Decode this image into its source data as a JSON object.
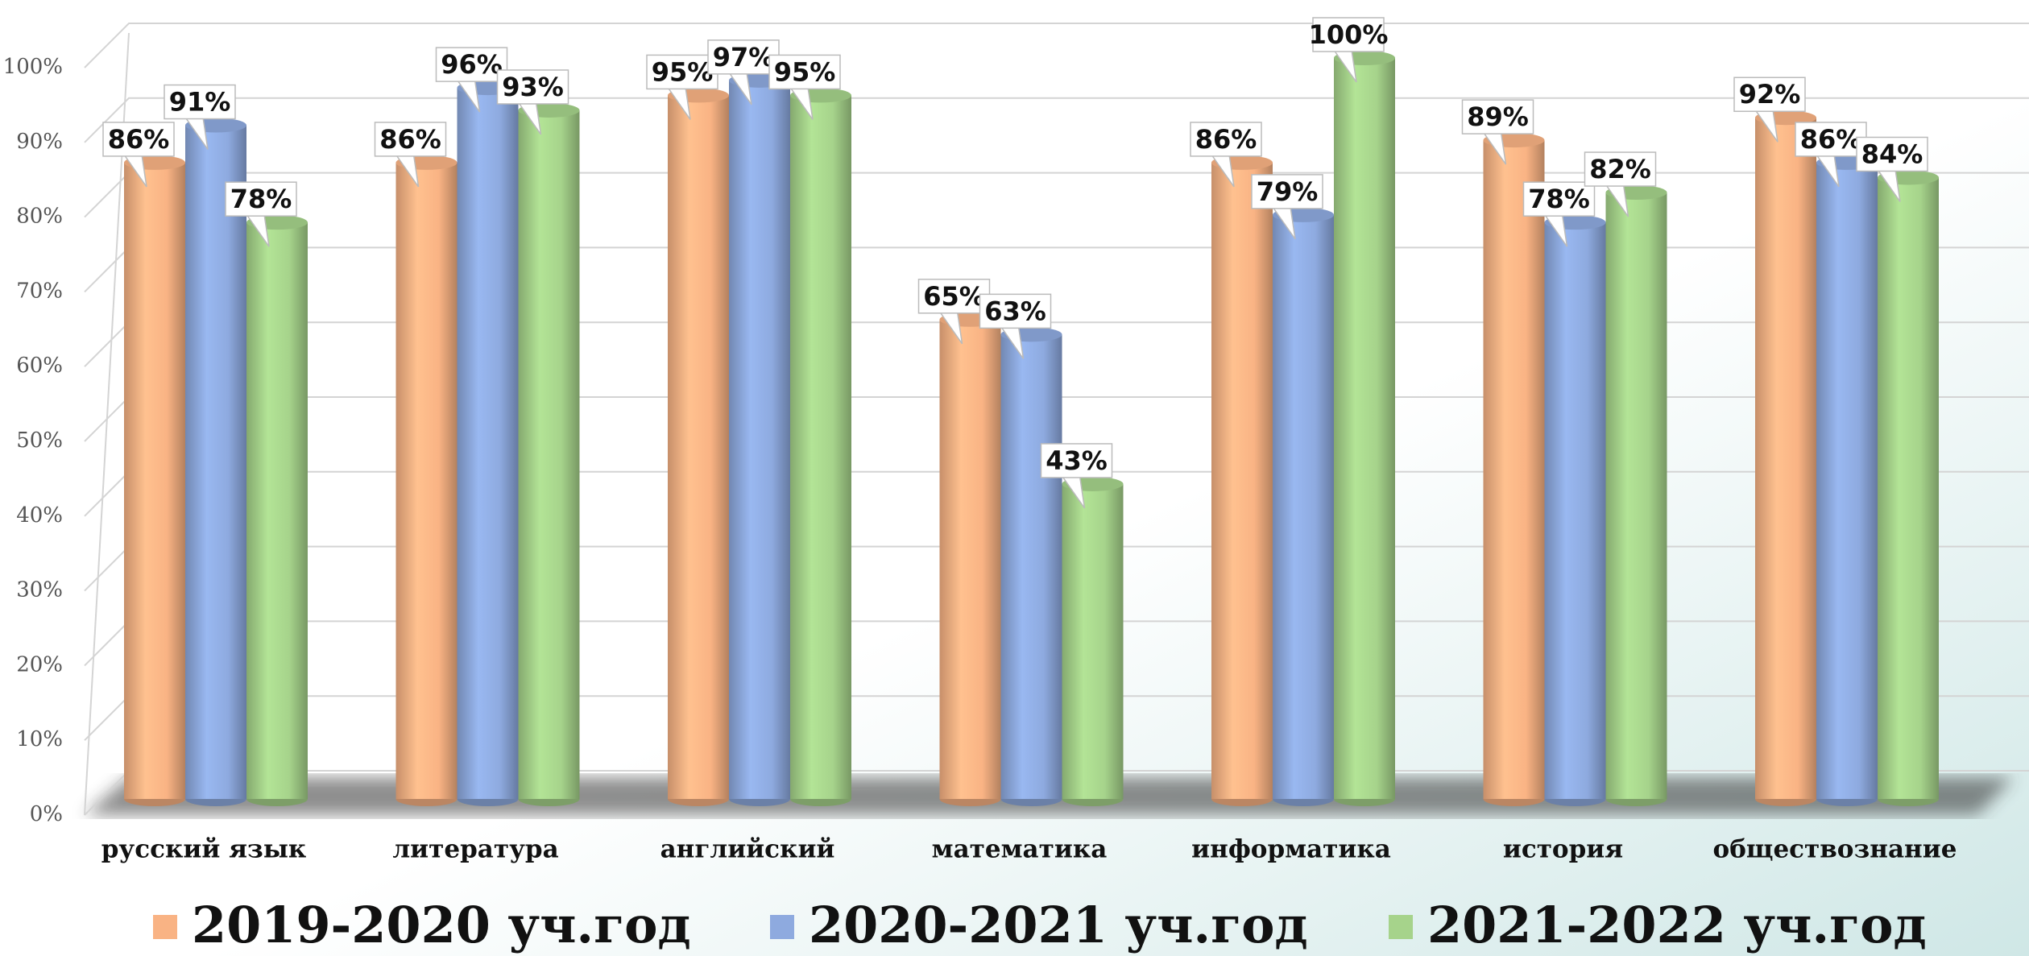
{
  "chart_data": {
    "type": "bar",
    "categories": [
      "русский язык",
      "литература",
      "английский",
      "математика",
      "информатика",
      "история",
      "обществознание"
    ],
    "series": [
      {
        "name": "2019-2020 уч.год",
        "color": "#f9b384",
        "values": [
          86,
          86,
          95,
          65,
          86,
          89,
          92
        ],
        "value_labels": [
          "86%",
          "86%",
          "95%",
          "65%",
          "86%",
          "89%",
          "92%"
        ]
      },
      {
        "name": "2020-2021 уч.год",
        "color": "#8eaadf",
        "values": [
          91,
          96,
          97,
          63,
          79,
          78,
          86
        ],
        "value_labels": [
          "91%",
          "96%",
          "97%",
          "63%",
          "79%",
          "78%",
          "86%"
        ]
      },
      {
        "name": "2021-2022 уч.год",
        "color": "#a6d38b",
        "values": [
          78,
          93,
          95,
          43,
          100,
          82,
          84
        ],
        "value_labels": [
          "78%",
          "93%",
          "95%",
          "43%",
          "100%",
          "82%",
          "84%"
        ]
      }
    ],
    "ylim": [
      0,
      100
    ],
    "yticks": [
      {
        "value": 0,
        "label": "0%"
      },
      {
        "value": 10,
        "label": "10%"
      },
      {
        "value": 20,
        "label": "20%"
      },
      {
        "value": 30,
        "label": "30%"
      },
      {
        "value": 40,
        "label": "40%"
      },
      {
        "value": 50,
        "label": "50%"
      },
      {
        "value": 60,
        "label": "60%"
      },
      {
        "value": 70,
        "label": "70%"
      },
      {
        "value": 80,
        "label": "80%"
      },
      {
        "value": 90,
        "label": "90%"
      },
      {
        "value": 100,
        "label": "100%"
      }
    ],
    "grid": true
  }
}
